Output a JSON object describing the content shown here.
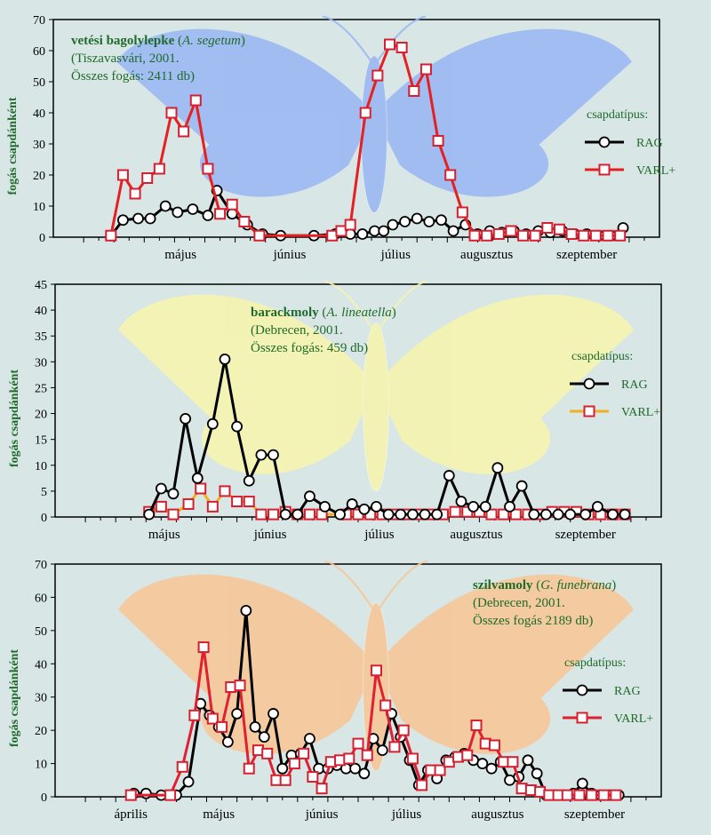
{
  "chart_data": [
    {
      "type": "line",
      "title": "vetési bagolylepke",
      "title_italic": "A. segetum",
      "subtitle_line1": "(Tiszavasvári, 2001.",
      "subtitle_line2": "Összes fogás: 2411 db)",
      "ylabel": "fogás csapdánként",
      "ylim": [
        0,
        70
      ],
      "yticks": [
        0,
        10,
        20,
        30,
        40,
        50,
        60,
        70
      ],
      "xlim": [
        0,
        20
      ],
      "month_labels": [
        {
          "label": "május",
          "x": 4.2
        },
        {
          "label": "június",
          "x": 7.8
        },
        {
          "label": "július",
          "x": 11.3
        },
        {
          "label": "augusztus",
          "x": 14.3
        },
        {
          "label": "szeptember",
          "x": 17.6
        }
      ],
      "legend_title": "csapdatípus:",
      "series": [
        {
          "name": "RAG",
          "x": [
            1.9,
            2.3,
            2.8,
            3.2,
            3.7,
            4.1,
            4.6,
            5.1,
            5.4,
            5.9,
            6.4,
            6.9,
            7.5,
            8.6,
            9.3,
            9.8,
            10.2,
            10.6,
            10.9,
            11.2,
            11.6,
            12.0,
            12.4,
            12.8,
            13.2,
            13.6,
            14.0,
            14.4,
            14.8,
            15.2,
            15.6,
            16.0,
            16.4,
            16.8,
            17.2,
            17.6,
            18.0,
            18.4,
            18.8
          ],
          "y": [
            0.5,
            5.5,
            6,
            6,
            10,
            8,
            9,
            7,
            15,
            7.5,
            4,
            1,
            0.5,
            0.5,
            1,
            1,
            1,
            2,
            2,
            4,
            5,
            6,
            5,
            5.5,
            2,
            4,
            1,
            2,
            1.5,
            2,
            1,
            2,
            1.5,
            2,
            1,
            1,
            0.5,
            0.5,
            3
          ]
        },
        {
          "name": "VARL+",
          "x": [
            1.9,
            2.3,
            2.7,
            3.1,
            3.5,
            3.9,
            4.3,
            4.7,
            5.1,
            5.5,
            5.9,
            6.3,
            6.8,
            9.2,
            9.5,
            9.8,
            10.3,
            10.7,
            11.1,
            11.5,
            11.9,
            12.3,
            12.7,
            13.1,
            13.5,
            13.9,
            14.3,
            14.7,
            15.1,
            15.5,
            15.9,
            16.3,
            16.7,
            17.1,
            17.5,
            17.9,
            18.3,
            18.7
          ],
          "y": [
            0.5,
            20,
            14,
            19,
            22,
            40,
            34,
            44,
            22,
            7.5,
            10.5,
            5,
            0.5,
            0.5,
            2,
            4,
            40,
            52,
            62,
            61,
            47,
            54,
            31,
            20,
            8,
            0.5,
            0.5,
            1,
            2,
            0.5,
            0.5,
            3,
            2.5,
            1,
            0.5,
            0.5,
            0.5,
            0.5
          ]
        }
      ]
    },
    {
      "type": "line",
      "title": "barackmoly",
      "title_italic": "A. lineatella",
      "subtitle_line1": "(Debrecen, 2001.",
      "subtitle_line2": "Összes fogás: 459 db)",
      "ylabel": "fogás csapdánként",
      "ylim": [
        0,
        45
      ],
      "yticks": [
        0,
        5,
        10,
        15,
        20,
        25,
        30,
        35,
        40,
        45
      ],
      "xlim": [
        0,
        20
      ],
      "month_labels": [
        {
          "label": "május",
          "x": 3.6
        },
        {
          "label": "június",
          "x": 7.1
        },
        {
          "label": "július",
          "x": 10.7
        },
        {
          "label": "augusztus",
          "x": 13.9
        },
        {
          "label": "szeptember",
          "x": 17.5
        }
      ],
      "legend_title": "csapdatípus:",
      "series": [
        {
          "name": "RAG",
          "x": [
            3.1,
            3.5,
            3.9,
            4.3,
            4.7,
            5.2,
            5.6,
            6.0,
            6.4,
            6.8,
            7.2,
            7.6,
            8.0,
            8.4,
            8.9,
            9.4,
            9.8,
            10.2,
            10.6,
            11.0,
            11.4,
            11.8,
            12.2,
            12.6,
            13.0,
            13.4,
            13.8,
            14.2,
            14.6,
            15.0,
            15.4,
            15.8,
            16.2,
            16.6,
            17.0,
            17.5,
            17.9,
            18.4,
            18.8
          ],
          "y": [
            0.5,
            5.5,
            4.5,
            19,
            7.5,
            18,
            30.5,
            17.5,
            7,
            12,
            12,
            0.5,
            0.5,
            4,
            2,
            0.5,
            2.5,
            1.5,
            2,
            0.5,
            0.5,
            0.5,
            0.5,
            0.5,
            8,
            3,
            2,
            2,
            9.5,
            2,
            6,
            0.5,
            0.5,
            0.5,
            0.5,
            0.5,
            2,
            0.5,
            0.5
          ]
        },
        {
          "name": "VARL+",
          "x": [
            3.1,
            3.5,
            3.9,
            4.4,
            4.8,
            5.2,
            5.6,
            6.0,
            6.4,
            6.8,
            7.2,
            7.6,
            8.0,
            8.4,
            8.8,
            9.6,
            10.0,
            10.4,
            10.8,
            11.2,
            11.6,
            12.0,
            12.4,
            12.8,
            13.2,
            13.6,
            14.0,
            14.4,
            14.8,
            15.2,
            15.6,
            16.0,
            16.4,
            16.8,
            17.2,
            17.6,
            18.0,
            18.4,
            18.8
          ],
          "y": [
            1,
            2,
            0.5,
            2.5,
            5.5,
            2,
            5,
            3,
            3,
            0.5,
            0.5,
            1,
            0.5,
            0.5,
            0.5,
            0.5,
            0.5,
            0.5,
            0.5,
            0.5,
            0.5,
            0.5,
            0.5,
            0.5,
            1,
            1,
            1,
            0.5,
            0.5,
            0.5,
            0.5,
            0.5,
            1,
            1,
            1,
            0.5,
            0.5,
            0.5,
            0.5
          ]
        }
      ]
    },
    {
      "type": "line",
      "title": "szilvamoly",
      "title_italic": "G. funebrana",
      "subtitle_line1": "(Debrecen, 2001.",
      "subtitle_line2": "Összes fogás 2189 db)",
      "ylabel": "fogás csapdánként",
      "ylim": [
        0,
        70
      ],
      "yticks": [
        0,
        10,
        20,
        30,
        40,
        50,
        60,
        70
      ],
      "xlim": [
        0,
        20
      ],
      "month_labels": [
        {
          "label": "április",
          "x": 2.5
        },
        {
          "label": "május",
          "x": 5.4
        },
        {
          "label": "június",
          "x": 8.8
        },
        {
          "label": "július",
          "x": 11.6
        },
        {
          "label": "augusztus",
          "x": 14.6
        },
        {
          "label": "szeptember",
          "x": 17.8
        }
      ],
      "legend_title": "csapdatípus:",
      "series": [
        {
          "name": "RAG",
          "x": [
            2.6,
            3.0,
            3.5,
            4.0,
            4.4,
            4.8,
            5.1,
            5.4,
            5.7,
            6.0,
            6.3,
            6.6,
            6.9,
            7.2,
            7.5,
            7.8,
            8.1,
            8.4,
            8.7,
            9.0,
            9.3,
            9.6,
            9.9,
            10.2,
            10.5,
            10.8,
            11.1,
            11.4,
            11.7,
            12.0,
            12.3,
            12.6,
            12.9,
            13.2,
            13.5,
            13.8,
            14.1,
            14.4,
            14.7,
            15.0,
            15.3,
            15.6,
            15.9,
            16.2,
            16.5,
            16.8,
            17.1,
            17.4,
            17.7,
            18.0,
            18.3,
            18.6
          ],
          "y": [
            1,
            1,
            0.5,
            0.5,
            4.5,
            28,
            24.5,
            21,
            16.5,
            25,
            56,
            21,
            18,
            25,
            8.5,
            12.5,
            13,
            17.5,
            8.5,
            8.5,
            9.5,
            8.5,
            8.5,
            7,
            17.5,
            14,
            25,
            18,
            11,
            3.5,
            8,
            5.5,
            11,
            12,
            13,
            11,
            10,
            8.5,
            10.5,
            5,
            6,
            11,
            7,
            0.5,
            0.5,
            0.5,
            1,
            4,
            1,
            0.5,
            0.5,
            0.5
          ]
        },
        {
          "name": "VARL+",
          "x": [
            2.5,
            3.8,
            4.2,
            4.6,
            4.9,
            5.2,
            5.5,
            5.8,
            6.1,
            6.4,
            6.7,
            7.0,
            7.3,
            7.6,
            7.9,
            8.2,
            8.5,
            8.8,
            9.1,
            9.4,
            9.7,
            10.0,
            10.3,
            10.6,
            10.9,
            11.2,
            11.5,
            11.8,
            12.1,
            12.4,
            12.7,
            13.0,
            13.3,
            13.6,
            13.9,
            14.2,
            14.5,
            14.8,
            15.1,
            15.4,
            15.7,
            16.0,
            16.3,
            16.6,
            16.9,
            17.3,
            17.7,
            18.1,
            18.5
          ],
          "y": [
            0.5,
            0.5,
            9,
            24.5,
            45,
            23.5,
            21,
            33,
            33.5,
            8.5,
            14,
            13,
            5,
            5,
            10,
            13,
            6,
            2.5,
            10.5,
            11,
            11.5,
            16,
            12.5,
            38,
            27.5,
            15,
            20,
            11.5,
            3.5,
            8,
            8,
            10.5,
            12,
            12.5,
            21.5,
            16,
            15.5,
            10.5,
            10.5,
            2.5,
            2,
            1.5,
            0.5,
            0.5,
            0.5,
            0.5,
            0.5,
            0.5,
            0.5
          ]
        }
      ]
    }
  ],
  "colors": {
    "background": "#d8e6e6",
    "title_green": "#1f6b2a",
    "rag": "#000000",
    "varl_panel1": "#e62020",
    "varl_panel2": "#f0b020",
    "varl_panel3": "#e02030",
    "marker_varl": "#d42030",
    "moth1": "#9bb8f2",
    "moth2": "#f6f4b0",
    "moth3": "#f7c698"
  }
}
